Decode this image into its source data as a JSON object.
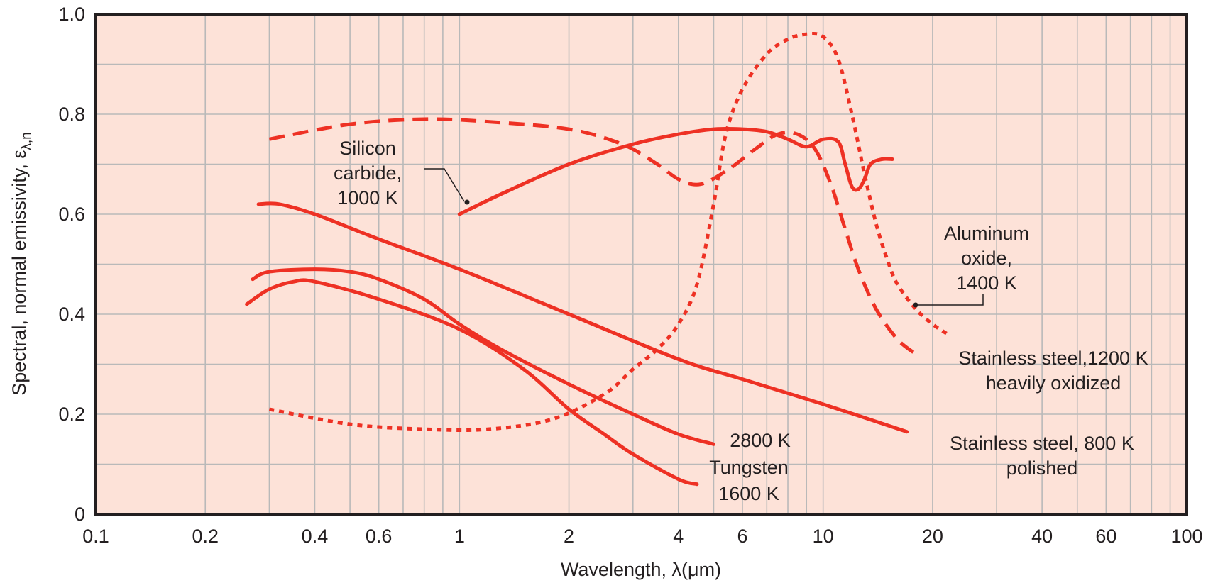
{
  "chart_data": {
    "type": "line",
    "title": "",
    "xlabel": "Wavelength, λ(μm)",
    "ylabel": "Spectral, normal emissivity, ε",
    "ylabel_subscript": "λ,n",
    "x_scale": "log",
    "xlim": [
      0.1,
      100
    ],
    "ylim": [
      0,
      1.0
    ],
    "grid": true,
    "plot_background": "#fde2d8",
    "line_color": "#ee3124",
    "x_ticks": [
      {
        "value": 0.1,
        "label": "0.1"
      },
      {
        "value": 0.2,
        "label": "0.2"
      },
      {
        "value": 0.4,
        "label": "0.4"
      },
      {
        "value": 0.6,
        "label": "0.6"
      },
      {
        "value": 1,
        "label": "1"
      },
      {
        "value": 2,
        "label": "2"
      },
      {
        "value": 4,
        "label": "4"
      },
      {
        "value": 6,
        "label": "6"
      },
      {
        "value": 10,
        "label": "10"
      },
      {
        "value": 20,
        "label": "20"
      },
      {
        "value": 40,
        "label": "40"
      },
      {
        "value": 60,
        "label": "60"
      },
      {
        "value": 100,
        "label": "100"
      }
    ],
    "y_ticks": [
      {
        "value": 0,
        "label": "0"
      },
      {
        "value": 0.2,
        "label": "0.2"
      },
      {
        "value": 0.4,
        "label": "0.4"
      },
      {
        "value": 0.6,
        "label": "0.6"
      },
      {
        "value": 0.8,
        "label": "0.8"
      },
      {
        "value": 1.0,
        "label": "1.0"
      }
    ],
    "series": [
      {
        "name": "Silicon carbide, 1000 K",
        "style": "solid",
        "points": [
          [
            1.0,
            0.6
          ],
          [
            1.3,
            0.64
          ],
          [
            2.0,
            0.7
          ],
          [
            3.0,
            0.74
          ],
          [
            4.0,
            0.76
          ],
          [
            5.0,
            0.77
          ],
          [
            6.0,
            0.77
          ],
          [
            7.0,
            0.765
          ],
          [
            8.0,
            0.75
          ],
          [
            9.0,
            0.735
          ],
          [
            10.0,
            0.75
          ],
          [
            11.0,
            0.745
          ],
          [
            11.5,
            0.7
          ],
          [
            12.0,
            0.655
          ],
          [
            12.5,
            0.65
          ],
          [
            13.0,
            0.67
          ],
          [
            13.5,
            0.7
          ],
          [
            14.5,
            0.71
          ],
          [
            15.5,
            0.71
          ]
        ]
      },
      {
        "name": "Aluminum oxide, 1400 K",
        "style": "dotted",
        "points": [
          [
            0.3,
            0.21
          ],
          [
            0.5,
            0.18
          ],
          [
            0.8,
            0.17
          ],
          [
            1.2,
            0.17
          ],
          [
            1.8,
            0.19
          ],
          [
            2.5,
            0.24
          ],
          [
            3.0,
            0.29
          ],
          [
            3.5,
            0.33
          ],
          [
            4.0,
            0.38
          ],
          [
            4.5,
            0.46
          ],
          [
            5.0,
            0.62
          ],
          [
            5.4,
            0.76
          ],
          [
            6.0,
            0.85
          ],
          [
            7.0,
            0.92
          ],
          [
            8.0,
            0.95
          ],
          [
            9.0,
            0.96
          ],
          [
            10.0,
            0.955
          ],
          [
            11.0,
            0.91
          ],
          [
            12.0,
            0.8
          ],
          [
            13.0,
            0.68
          ],
          [
            14.0,
            0.58
          ],
          [
            15.0,
            0.51
          ],
          [
            16.0,
            0.46
          ],
          [
            18.0,
            0.41
          ],
          [
            20.0,
            0.38
          ],
          [
            22.0,
            0.36
          ]
        ]
      },
      {
        "name": "Stainless steel, 1200 K heavily oxidized",
        "style": "dashed",
        "points": [
          [
            0.3,
            0.75
          ],
          [
            0.5,
            0.78
          ],
          [
            0.8,
            0.79
          ],
          [
            1.2,
            0.785
          ],
          [
            2.0,
            0.77
          ],
          [
            2.8,
            0.74
          ],
          [
            3.5,
            0.7
          ],
          [
            4.0,
            0.67
          ],
          [
            4.6,
            0.66
          ],
          [
            5.5,
            0.69
          ],
          [
            6.5,
            0.73
          ],
          [
            7.5,
            0.76
          ],
          [
            8.5,
            0.76
          ],
          [
            9.5,
            0.73
          ],
          [
            10.5,
            0.66
          ],
          [
            11.5,
            0.57
          ],
          [
            12.5,
            0.49
          ],
          [
            14.0,
            0.41
          ],
          [
            16.0,
            0.35
          ],
          [
            18.0,
            0.32
          ]
        ]
      },
      {
        "name": "Stainless steel, 800 K polished",
        "style": "solid",
        "points": [
          [
            0.28,
            0.62
          ],
          [
            0.32,
            0.62
          ],
          [
            0.4,
            0.6
          ],
          [
            0.6,
            0.55
          ],
          [
            1.0,
            0.49
          ],
          [
            2.0,
            0.4
          ],
          [
            4.0,
            0.31
          ],
          [
            6.0,
            0.27
          ],
          [
            10.0,
            0.22
          ],
          [
            17.0,
            0.165
          ]
        ]
      },
      {
        "name": "Tungsten 2800 K",
        "style": "solid",
        "points": [
          [
            0.27,
            0.47
          ],
          [
            0.3,
            0.485
          ],
          [
            0.4,
            0.49
          ],
          [
            0.5,
            0.485
          ],
          [
            0.6,
            0.47
          ],
          [
            0.8,
            0.43
          ],
          [
            1.0,
            0.38
          ],
          [
            1.3,
            0.33
          ],
          [
            2.0,
            0.26
          ],
          [
            3.0,
            0.2
          ],
          [
            4.0,
            0.16
          ],
          [
            5.0,
            0.14
          ]
        ]
      },
      {
        "name": "Tungsten 1600 K",
        "style": "solid",
        "points": [
          [
            0.26,
            0.42
          ],
          [
            0.3,
            0.45
          ],
          [
            0.35,
            0.465
          ],
          [
            0.4,
            0.465
          ],
          [
            0.6,
            0.43
          ],
          [
            1.0,
            0.37
          ],
          [
            1.5,
            0.29
          ],
          [
            2.0,
            0.21
          ],
          [
            2.5,
            0.16
          ],
          [
            3.0,
            0.12
          ],
          [
            4.0,
            0.07
          ],
          [
            4.5,
            0.06
          ]
        ]
      }
    ],
    "annotations": [
      {
        "id": "sic",
        "lines": [
          "Silicon",
          "carbide,",
          "1000 K"
        ]
      },
      {
        "id": "al2o3",
        "lines": [
          "Aluminum",
          "oxide,",
          "1400 K"
        ]
      },
      {
        "id": "ss1200",
        "lines": [
          "Stainless steel,1200 K",
          "heavily oxidized"
        ]
      },
      {
        "id": "ss800",
        "lines": [
          "Stainless steel, 800 K",
          "polished"
        ]
      },
      {
        "id": "w2800",
        "lines": [
          "2800 K"
        ]
      },
      {
        "id": "w1600",
        "lines": [
          "Tungsten",
          "1600 K"
        ]
      }
    ]
  }
}
